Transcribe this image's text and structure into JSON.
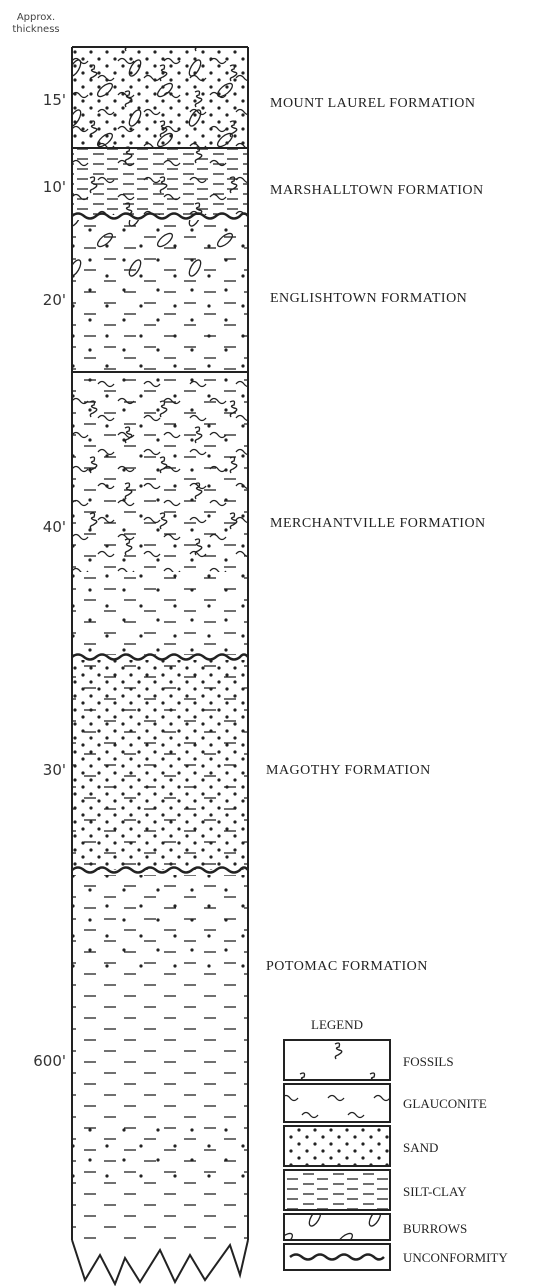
{
  "header": {
    "thickness_label": [
      "Approx.",
      "thickness"
    ]
  },
  "formations": [
    {
      "thickness": "15'",
      "name": "MOUNT LAUREL FORMATION"
    },
    {
      "thickness": "10'",
      "name": "MARSHALLTOWN FORMATION"
    },
    {
      "thickness": "20'",
      "name": "ENGLISHTOWN FORMATION"
    },
    {
      "thickness": "40'",
      "name": "MERCHANTVILLE FORMATION"
    },
    {
      "thickness": "30'",
      "name": "MAGOTHY FORMATION"
    },
    {
      "thickness": "600'",
      "name": "POTOMAC FORMATION"
    }
  ],
  "legend": {
    "title": "LEGEND",
    "items": [
      "FOSSILS",
      "GLAUCONITE",
      "SAND",
      "SILT-CLAY",
      "BURROWS",
      "UNCONFORMITY"
    ]
  }
}
